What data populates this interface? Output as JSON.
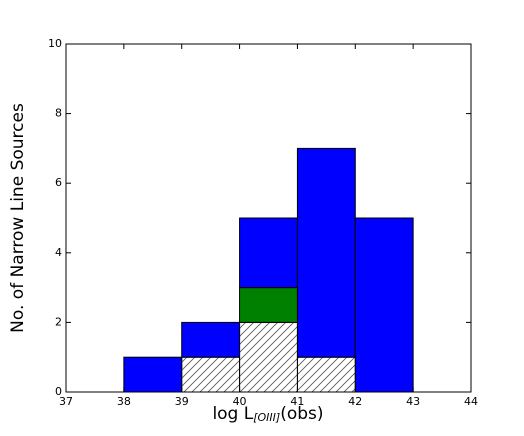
{
  "chart_data": {
    "type": "histogram",
    "x_label": {
      "main": "log L",
      "sub": "[OIII]",
      "end": "(obs)"
    },
    "y_label": "No. of Narrow Line Sources",
    "bins": [
      38,
      39,
      40,
      41,
      42,
      43
    ],
    "stacked": true,
    "series": [
      {
        "color": "#ffffff",
        "hatch": true,
        "values": [
          0,
          1,
          2,
          1,
          0
        ]
      },
      {
        "color": "#008000",
        "values": [
          0,
          0,
          1,
          0,
          0
        ]
      },
      {
        "color": "#0000ff",
        "values": [
          1,
          1,
          2,
          6,
          5
        ]
      }
    ],
    "xlim": [
      37,
      44
    ],
    "xticks": [
      37,
      38,
      39,
      40,
      41,
      42,
      43,
      44
    ],
    "ylim": [
      0,
      10
    ],
    "yticks": [
      0,
      2,
      4,
      6,
      8,
      10
    ]
  }
}
